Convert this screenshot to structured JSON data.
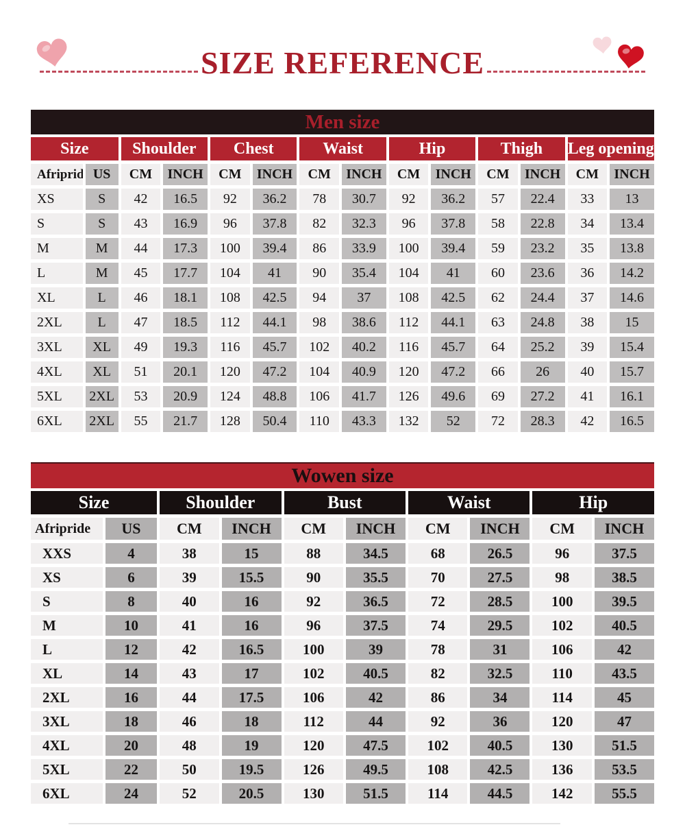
{
  "header": {
    "title": "SIZE REFERENCE"
  },
  "men_table": {
    "title": "Men size",
    "groups": [
      "Size",
      "Shoulder",
      "Chest",
      "Waist",
      "Hip",
      "Thigh",
      "Leg opening"
    ],
    "subheader": [
      "Afripride",
      "US",
      "CM",
      "INCH",
      "CM",
      "INCH",
      "CM",
      "INCH",
      "CM",
      "INCH",
      "CM",
      "INCH",
      "CM",
      "INCH"
    ],
    "rows": [
      [
        "XS",
        "S",
        "42",
        "16.5",
        "92",
        "36.2",
        "78",
        "30.7",
        "92",
        "36.2",
        "57",
        "22.4",
        "33",
        "13"
      ],
      [
        "S",
        "S",
        "43",
        "16.9",
        "96",
        "37.8",
        "82",
        "32.3",
        "96",
        "37.8",
        "58",
        "22.8",
        "34",
        "13.4"
      ],
      [
        "M",
        "M",
        "44",
        "17.3",
        "100",
        "39.4",
        "86",
        "33.9",
        "100",
        "39.4",
        "59",
        "23.2",
        "35",
        "13.8"
      ],
      [
        "L",
        "M",
        "45",
        "17.7",
        "104",
        "41",
        "90",
        "35.4",
        "104",
        "41",
        "60",
        "23.6",
        "36",
        "14.2"
      ],
      [
        "XL",
        "L",
        "46",
        "18.1",
        "108",
        "42.5",
        "94",
        "37",
        "108",
        "42.5",
        "62",
        "24.4",
        "37",
        "14.6"
      ],
      [
        "2XL",
        "L",
        "47",
        "18.5",
        "112",
        "44.1",
        "98",
        "38.6",
        "112",
        "44.1",
        "63",
        "24.8",
        "38",
        "15"
      ],
      [
        "3XL",
        "XL",
        "49",
        "19.3",
        "116",
        "45.7",
        "102",
        "40.2",
        "116",
        "45.7",
        "64",
        "25.2",
        "39",
        "15.4"
      ],
      [
        "4XL",
        "XL",
        "51",
        "20.1",
        "120",
        "47.2",
        "104",
        "40.9",
        "120",
        "47.2",
        "66",
        "26",
        "40",
        "15.7"
      ],
      [
        "5XL",
        "2XL",
        "53",
        "20.9",
        "124",
        "48.8",
        "106",
        "41.7",
        "126",
        "49.6",
        "69",
        "27.2",
        "41",
        "16.1"
      ],
      [
        "6XL",
        "2XL",
        "55",
        "21.7",
        "128",
        "50.4",
        "110",
        "43.3",
        "132",
        "52",
        "72",
        "28.3",
        "42",
        "16.5"
      ]
    ]
  },
  "women_table": {
    "title": "Wowen size",
    "groups": [
      "Size",
      "Shoulder",
      "Bust",
      "Waist",
      "Hip"
    ],
    "subheader": [
      "Afripride",
      "US",
      "CM",
      "INCH",
      "CM",
      "INCH",
      "CM",
      "INCH",
      "CM",
      "INCH"
    ],
    "rows": [
      [
        "XXS",
        "4",
        "38",
        "15",
        "88",
        "34.5",
        "68",
        "26.5",
        "96",
        "37.5"
      ],
      [
        "XS",
        "6",
        "39",
        "15.5",
        "90",
        "35.5",
        "70",
        "27.5",
        "98",
        "38.5"
      ],
      [
        "S",
        "8",
        "40",
        "16",
        "92",
        "36.5",
        "72",
        "28.5",
        "100",
        "39.5"
      ],
      [
        "M",
        "10",
        "41",
        "16",
        "96",
        "37.5",
        "74",
        "29.5",
        "102",
        "40.5"
      ],
      [
        "L",
        "12",
        "42",
        "16.5",
        "100",
        "39",
        "78",
        "31",
        "106",
        "42"
      ],
      [
        "XL",
        "14",
        "43",
        "17",
        "102",
        "40.5",
        "82",
        "32.5",
        "110",
        "43.5"
      ],
      [
        "2XL",
        "16",
        "44",
        "17.5",
        "106",
        "42",
        "86",
        "34",
        "114",
        "45"
      ],
      [
        "3XL",
        "18",
        "46",
        "18",
        "112",
        "44",
        "92",
        "36",
        "120",
        "47"
      ],
      [
        "4XL",
        "20",
        "48",
        "19",
        "120",
        "47.5",
        "102",
        "40.5",
        "130",
        "51.5"
      ],
      [
        "5XL",
        "22",
        "50",
        "19.5",
        "126",
        "49.5",
        "108",
        "42.5",
        "136",
        "53.5"
      ],
      [
        "6XL",
        "24",
        "52",
        "20.5",
        "130",
        "51.5",
        "114",
        "44.5",
        "142",
        "55.5"
      ]
    ]
  },
  "icons": {
    "left": "pink-heart-icon",
    "right_small": "pale-pink-heart-icon",
    "right_large": "red-heart-icon"
  },
  "colors": {
    "title_red": "#a81f2b",
    "dash_red": "#c04b5b",
    "men_title_bg": "#211516",
    "men_header_bg": "#b2242f",
    "women_title_bg": "#b5252f",
    "women_header_bg": "#171010",
    "cell_light": "#f1efef",
    "cell_shade_men": "#bfbdbd",
    "cell_shade_women": "#b2b0b0",
    "heart_pink": "#efa3ac",
    "heart_pale": "#f6d3d8",
    "heart_red": "#cf1222"
  }
}
